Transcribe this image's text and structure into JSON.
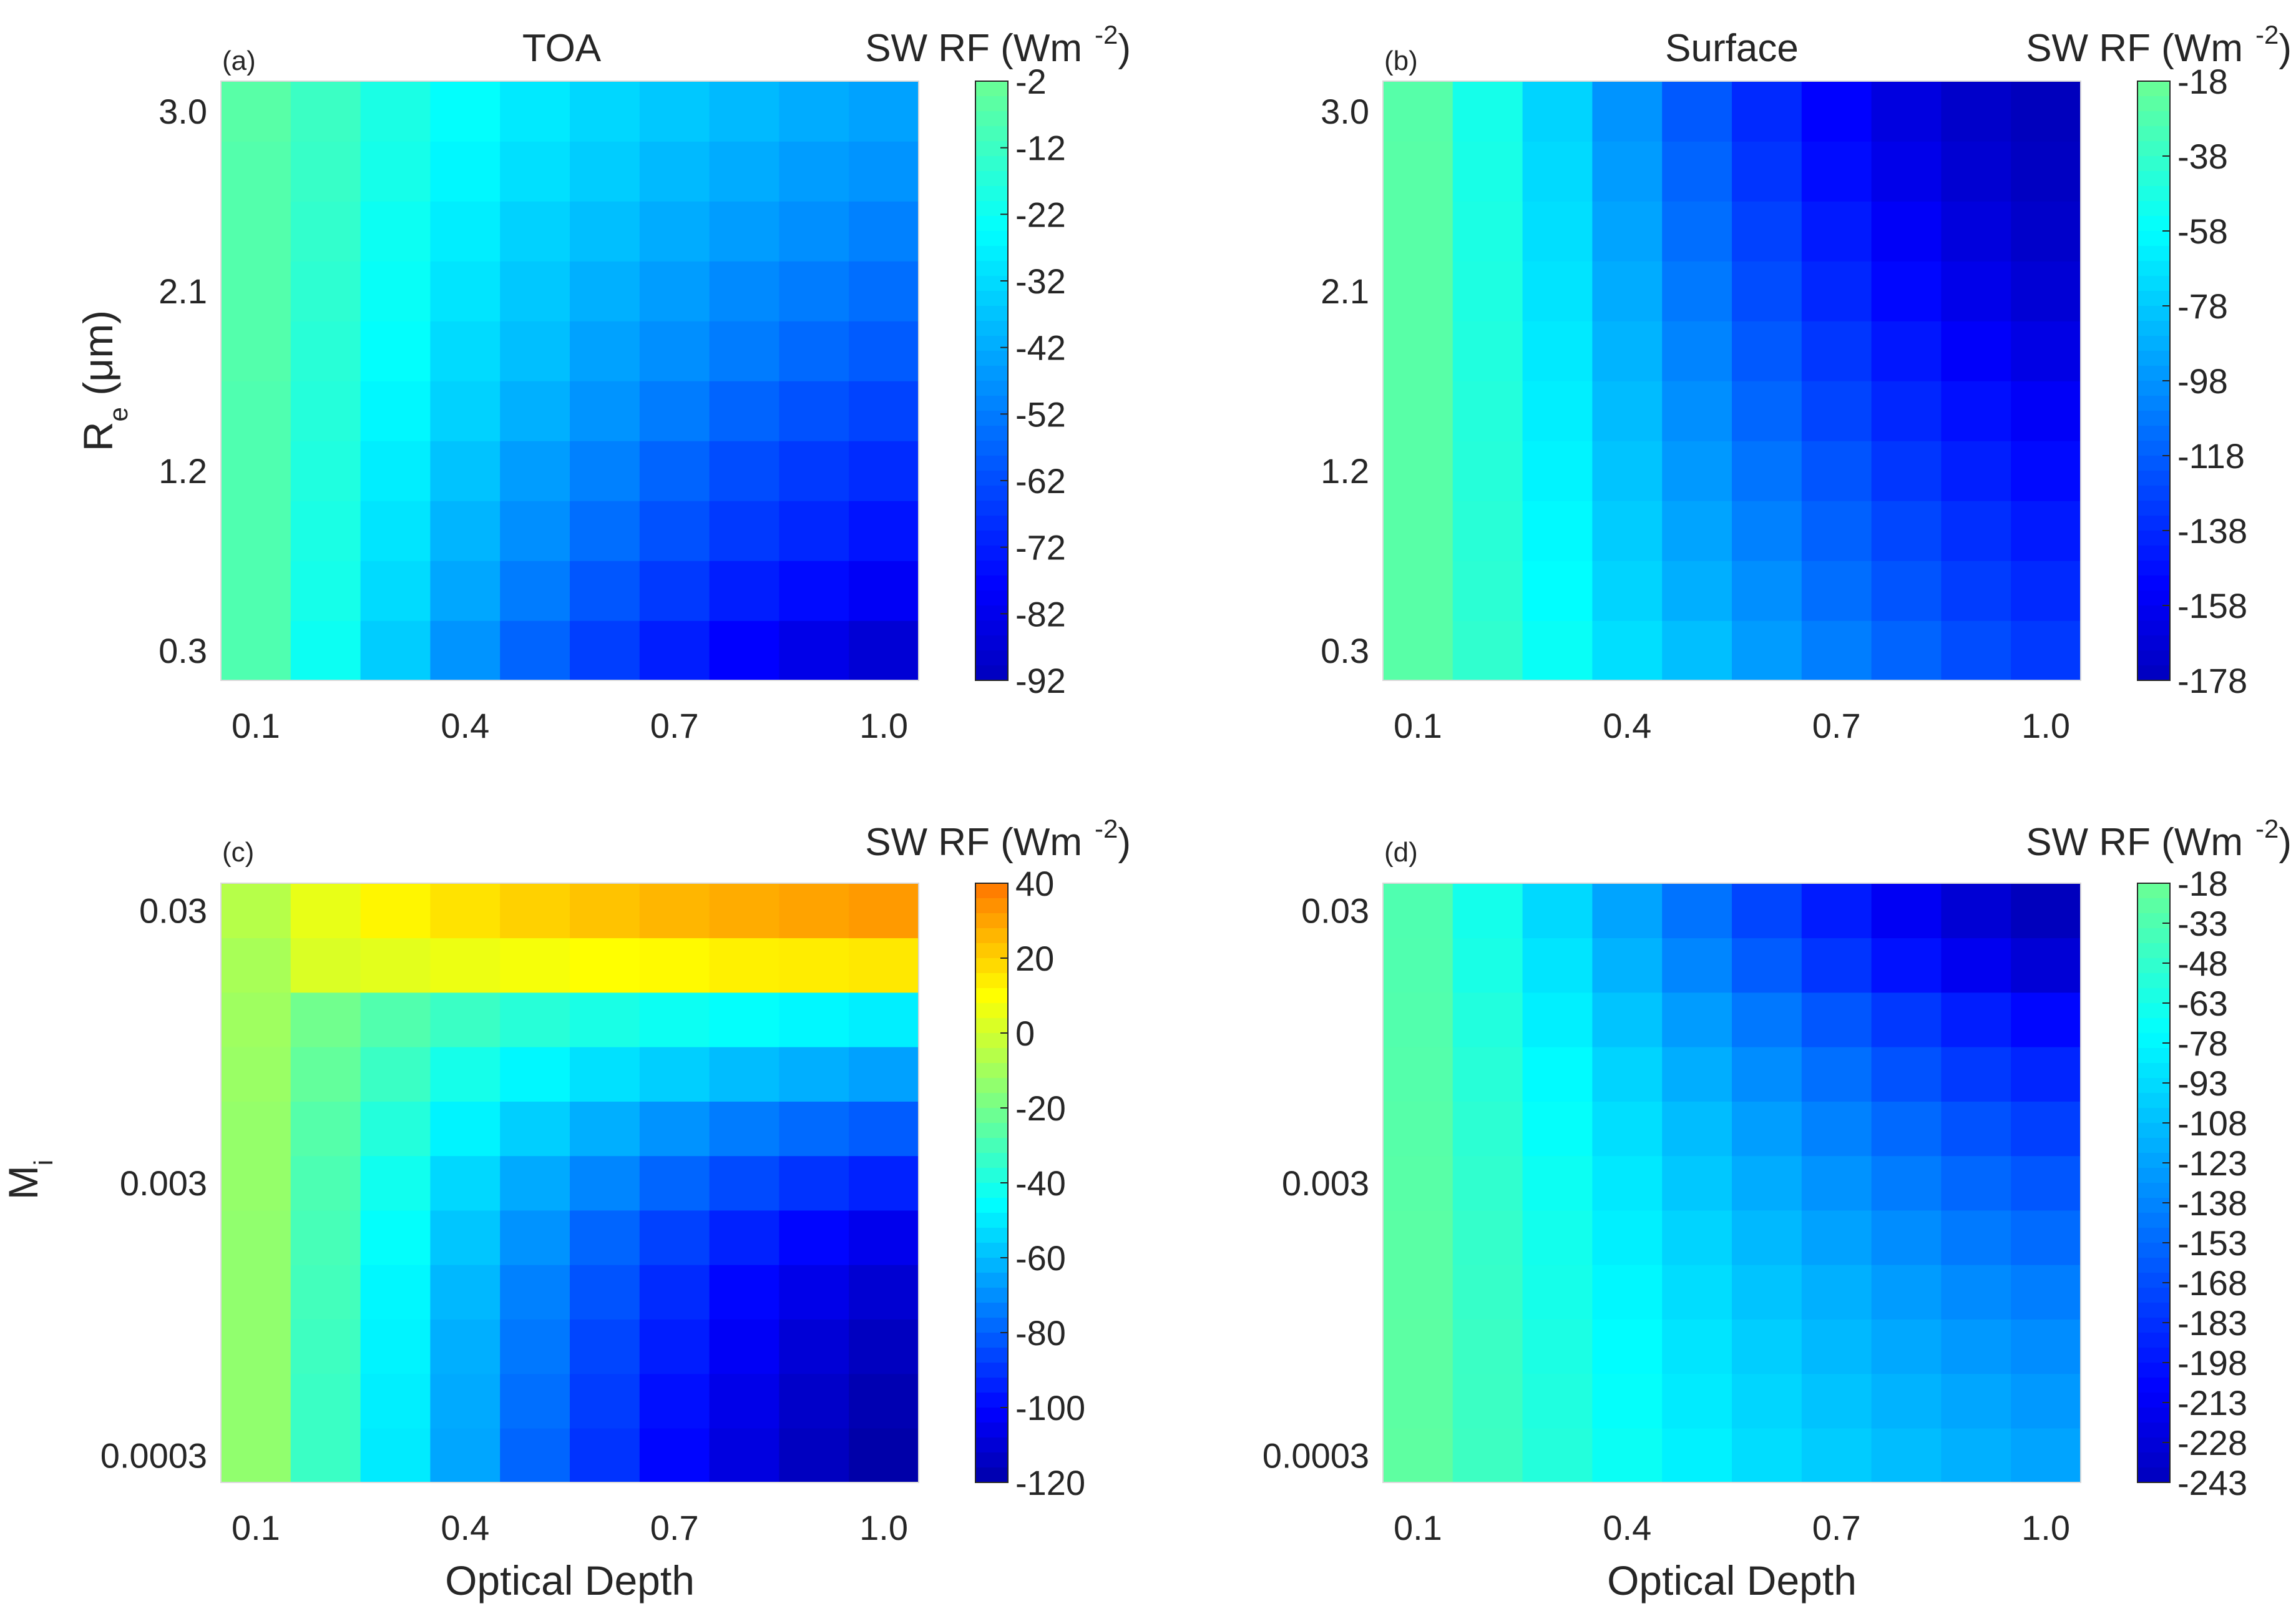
{
  "chart_data": [
    {
      "type": "heatmap",
      "panel_label": "(a)",
      "title": "TOA",
      "colorbar_label": "SW RF (Wm",
      "colorbar_exponent": "-2",
      "colorbar_close": ")",
      "colormap": "jet-upper",
      "xlabel": "",
      "ylabel_main": "R",
      "ylabel_sub": "e",
      "ylabel_unit": " (μm)",
      "x_tick_labels": [
        "0.1",
        "0.4",
        "0.7",
        "1.0"
      ],
      "x_tick_values": [
        0.1,
        0.4,
        0.7,
        1.0
      ],
      "x": [
        0.1,
        0.2,
        0.3,
        0.4,
        0.5,
        0.6,
        0.7,
        0.8,
        0.9,
        1.0
      ],
      "y_tick_labels": [
        "0.3",
        "1.2",
        "2.1",
        "3.0"
      ],
      "y_tick_values": [
        0.3,
        1.2,
        2.1,
        3.0
      ],
      "y": [
        0.3,
        0.6,
        0.9,
        1.2,
        1.5,
        1.8,
        2.1,
        2.4,
        2.7,
        3.0
      ],
      "colorbar_ticks": [
        "-2",
        "-12",
        "-22",
        "-32",
        "-42",
        "-52",
        "-62",
        "-72",
        "-82",
        "-92"
      ],
      "zlim": [
        -92,
        -2
      ],
      "values": [
        [
          -8,
          -22,
          -35,
          -47,
          -57,
          -65,
          -72,
          -78,
          -83,
          -87
        ],
        [
          -8,
          -20,
          -32,
          -43,
          -52,
          -60,
          -66,
          -72,
          -76,
          -80
        ],
        [
          -8,
          -19,
          -30,
          -40,
          -48,
          -55,
          -61,
          -66,
          -70,
          -74
        ],
        [
          -8,
          -18,
          -28,
          -37,
          -45,
          -51,
          -57,
          -62,
          -66,
          -69
        ],
        [
          -8,
          -17,
          -26,
          -34,
          -41,
          -47,
          -52,
          -57,
          -61,
          -64
        ],
        [
          -7,
          -16,
          -24,
          -32,
          -38,
          -44,
          -48,
          -52,
          -56,
          -59
        ],
        [
          -7,
          -15,
          -23,
          -30,
          -36,
          -41,
          -45,
          -49,
          -52,
          -55
        ],
        [
          -7,
          -14,
          -22,
          -28,
          -34,
          -38,
          -42,
          -45,
          -48,
          -51
        ],
        [
          -7,
          -13,
          -20,
          -26,
          -31,
          -35,
          -39,
          -42,
          -45,
          -47
        ],
        [
          -6,
          -12,
          -19,
          -24,
          -29,
          -33,
          -36,
          -39,
          -42,
          -44
        ]
      ]
    },
    {
      "type": "heatmap",
      "panel_label": "(b)",
      "title": "Surface",
      "colorbar_label": "SW RF (Wm",
      "colorbar_exponent": "-2",
      "colorbar_close": ")",
      "colormap": "jet-upper",
      "xlabel": "",
      "x_tick_labels": [
        "0.1",
        "0.4",
        "0.7",
        "1.0"
      ],
      "x_tick_values": [
        0.1,
        0.4,
        0.7,
        1.0
      ],
      "x": [
        0.1,
        0.2,
        0.3,
        0.4,
        0.5,
        0.6,
        0.7,
        0.8,
        0.9,
        1.0
      ],
      "y_tick_labels": [
        "0.3",
        "1.2",
        "2.1",
        "3.0"
      ],
      "y_tick_values": [
        0.3,
        1.2,
        2.1,
        3.0
      ],
      "y": [
        0.3,
        0.6,
        0.9,
        1.2,
        1.5,
        1.8,
        2.1,
        2.4,
        2.7,
        3.0
      ],
      "colorbar_ticks": [
        "-18",
        "-38",
        "-58",
        "-78",
        "-98",
        "-118",
        "-138",
        "-158",
        "-178"
      ],
      "zlim": [
        -178,
        -18
      ],
      "values": [
        [
          -25,
          -40,
          -55,
          -70,
          -82,
          -95,
          -106,
          -116,
          -125,
          -132
        ],
        [
          -25,
          -42,
          -58,
          -74,
          -88,
          -100,
          -112,
          -122,
          -131,
          -138
        ],
        [
          -25,
          -43,
          -60,
          -77,
          -92,
          -105,
          -117,
          -127,
          -136,
          -144
        ],
        [
          -25,
          -44,
          -62,
          -80,
          -96,
          -110,
          -122,
          -133,
          -142,
          -150
        ],
        [
          -25,
          -45,
          -64,
          -83,
          -100,
          -115,
          -128,
          -139,
          -148,
          -156
        ],
        [
          -25,
          -46,
          -66,
          -86,
          -104,
          -120,
          -133,
          -145,
          -155,
          -163
        ],
        [
          -25,
          -47,
          -68,
          -89,
          -108,
          -125,
          -139,
          -151,
          -161,
          -169
        ],
        [
          -25,
          -48,
          -70,
          -92,
          -112,
          -129,
          -144,
          -156,
          -166,
          -173
        ],
        [
          -25,
          -49,
          -72,
          -95,
          -116,
          -134,
          -149,
          -161,
          -170,
          -176
        ],
        [
          -26,
          -50,
          -74,
          -98,
          -120,
          -138,
          -153,
          -165,
          -173,
          -178
        ]
      ]
    },
    {
      "type": "heatmap",
      "panel_label": "(c)",
      "title": "",
      "colorbar_label": "SW RF (Wm",
      "colorbar_exponent": "-2",
      "colorbar_close": ")",
      "colormap": "jet-full",
      "xlabel": "Optical Depth",
      "ylabel_main": "M",
      "ylabel_sub": "i",
      "ylabel_unit": "",
      "x_tick_labels": [
        "0.1",
        "0.4",
        "0.7",
        "1.0"
      ],
      "x_tick_values": [
        0.1,
        0.4,
        0.7,
        1.0
      ],
      "x": [
        0.1,
        0.2,
        0.3,
        0.4,
        0.5,
        0.6,
        0.7,
        0.8,
        0.9,
        1.0
      ],
      "y_tick_labels": [
        "0.0003",
        "0.003",
        "0.03"
      ],
      "y_scale": "log",
      "y_tick_values": [
        0.0003,
        0.003,
        0.03
      ],
      "y": [
        0.0003,
        0.00048,
        0.00077,
        0.0012,
        0.002,
        0.0032,
        0.0051,
        0.0081,
        0.013,
        0.021,
        0.03
      ],
      "colorbar_ticks": [
        "40",
        "20",
        "0",
        "-20",
        "-40",
        "-60",
        "-80",
        "-100",
        "-120"
      ],
      "zlim": [
        -120,
        40
      ],
      "values": [
        [
          -14,
          -33,
          -50,
          -65,
          -79,
          -90,
          -100,
          -108,
          -115,
          -120
        ],
        [
          -14,
          -33,
          -49,
          -64,
          -77,
          -88,
          -98,
          -106,
          -113,
          -118
        ],
        [
          -14,
          -32,
          -48,
          -63,
          -75,
          -86,
          -95,
          -103,
          -110,
          -115
        ],
        [
          -14,
          -31,
          -47,
          -61,
          -73,
          -83,
          -92,
          -100,
          -106,
          -111
        ],
        [
          -14,
          -30,
          -45,
          -58,
          -69,
          -79,
          -87,
          -94,
          -100,
          -105
        ],
        [
          -13,
          -29,
          -42,
          -54,
          -64,
          -72,
          -79,
          -85,
          -90,
          -94
        ],
        [
          -13,
          -27,
          -38,
          -48,
          -56,
          -63,
          -69,
          -74,
          -78,
          -81
        ],
        [
          -12,
          -24,
          -33,
          -41,
          -47,
          -52,
          -56,
          -60,
          -63,
          -66
        ],
        [
          -11,
          -21,
          -28,
          -33,
          -37,
          -40,
          -43,
          -45,
          -47,
          -49
        ],
        [
          -9,
          2,
          4,
          6,
          8,
          10,
          11,
          13,
          14,
          15
        ],
        [
          -6,
          5,
          12,
          16,
          20,
          23,
          26,
          28,
          30,
          32
        ]
      ]
    },
    {
      "type": "heatmap",
      "panel_label": "(d)",
      "title": "",
      "colorbar_label": "SW RF (Wm",
      "colorbar_exponent": "-2",
      "colorbar_close": ")",
      "colormap": "jet-upper",
      "xlabel": "Optical Depth",
      "x_tick_labels": [
        "0.1",
        "0.4",
        "0.7",
        "1.0"
      ],
      "x_tick_values": [
        0.1,
        0.4,
        0.7,
        1.0
      ],
      "x": [
        0.1,
        0.2,
        0.3,
        0.4,
        0.5,
        0.6,
        0.7,
        0.8,
        0.9,
        1.0
      ],
      "y_tick_labels": [
        "0.0003",
        "0.003",
        "0.03"
      ],
      "y_scale": "log",
      "y_tick_values": [
        0.0003,
        0.003,
        0.03
      ],
      "y": [
        0.0003,
        0.00048,
        0.00077,
        0.0012,
        0.002,
        0.0032,
        0.0051,
        0.0081,
        0.013,
        0.021,
        0.03
      ],
      "colorbar_ticks": [
        "-18",
        "-33",
        "-48",
        "-63",
        "-78",
        "-93",
        "-108",
        "-123",
        "-138",
        "-153",
        "-168",
        "-183",
        "-198",
        "-213",
        "-228",
        "-243"
      ],
      "zlim": [
        -243,
        -18
      ],
      "values": [
        [
          -25,
          -42,
          -56,
          -69,
          -81,
          -92,
          -101,
          -109,
          -116,
          -122
        ],
        [
          -26,
          -43,
          -58,
          -72,
          -85,
          -96,
          -106,
          -114,
          -121,
          -128
        ],
        [
          -26,
          -44,
          -60,
          -75,
          -88,
          -100,
          -111,
          -120,
          -128,
          -134
        ],
        [
          -27,
          -46,
          -63,
          -78,
          -92,
          -105,
          -116,
          -126,
          -135,
          -142
        ],
        [
          -27,
          -47,
          -65,
          -82,
          -97,
          -111,
          -123,
          -134,
          -144,
          -152
        ],
        [
          -28,
          -49,
          -68,
          -86,
          -103,
          -118,
          -131,
          -143,
          -154,
          -163
        ],
        [
          -29,
          -51,
          -72,
          -91,
          -109,
          -125,
          -140,
          -153,
          -165,
          -175
        ],
        [
          -30,
          -54,
          -76,
          -97,
          -117,
          -134,
          -150,
          -165,
          -178,
          -189
        ],
        [
          -31,
          -57,
          -82,
          -105,
          -126,
          -145,
          -163,
          -179,
          -193,
          -205
        ],
        [
          -32,
          -61,
          -88,
          -114,
          -138,
          -160,
          -181,
          -199,
          -216,
          -230
        ],
        [
          -33,
          -64,
          -94,
          -122,
          -148,
          -172,
          -194,
          -214,
          -231,
          -243
        ]
      ]
    }
  ]
}
